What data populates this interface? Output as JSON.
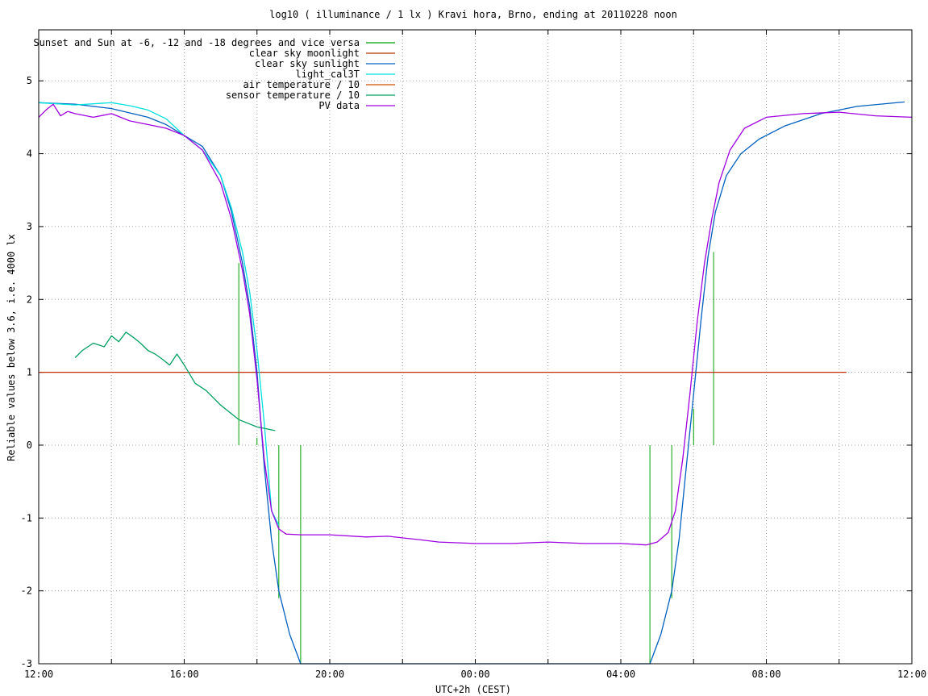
{
  "chart_data": {
    "type": "line",
    "title": "log10 ( illuminance / 1 lx ) Kravi hora, Brno, ending at 20110228 noon",
    "xlabel": "UTC+2h (CEST)",
    "ylabel": "Reliable values below 3.6, i.e. 4000 lx",
    "xlim": [
      0,
      24
    ],
    "ylim": [
      -3,
      5.7
    ],
    "x_unit": "hours since 12:00",
    "grid": true,
    "legend_position": "top-left",
    "xticks": [
      {
        "v": 0,
        "label": "12:00"
      },
      {
        "v": 2,
        "label": ""
      },
      {
        "v": 4,
        "label": "16:00"
      },
      {
        "v": 6,
        "label": ""
      },
      {
        "v": 8,
        "label": "20:00"
      },
      {
        "v": 10,
        "label": ""
      },
      {
        "v": 12,
        "label": "00:00"
      },
      {
        "v": 14,
        "label": ""
      },
      {
        "v": 16,
        "label": "04:00"
      },
      {
        "v": 18,
        "label": ""
      },
      {
        "v": 20,
        "label": "08:00"
      },
      {
        "v": 22,
        "label": ""
      },
      {
        "v": 24,
        "label": "12:00"
      }
    ],
    "yticks": [
      {
        "v": -3,
        "label": "-3"
      },
      {
        "v": -2,
        "label": "-2"
      },
      {
        "v": -1,
        "label": "-1"
      },
      {
        "v": 0,
        "label": "0"
      },
      {
        "v": 1,
        "label": "1"
      },
      {
        "v": 2,
        "label": "2"
      },
      {
        "v": 3,
        "label": "3"
      },
      {
        "v": 4,
        "label": "4"
      },
      {
        "v": 5,
        "label": "5"
      }
    ],
    "series": [
      {
        "name": "Sunset and Sun at -6, -12 and -18 degrees and vice versa",
        "color": "#00a000",
        "style": "impulses",
        "points": [
          [
            5.5,
            2.5
          ],
          [
            6.0,
            0.1
          ],
          [
            6.6,
            -2.1
          ],
          [
            7.2,
            -3.0
          ],
          [
            16.8,
            -3.0
          ],
          [
            17.4,
            -2.1
          ],
          [
            18.0,
            0.5
          ],
          [
            18.55,
            2.65
          ]
        ]
      },
      {
        "name": "clear sky moonlight",
        "color": "#c03000",
        "points": [
          [
            0,
            1.0
          ],
          [
            22.2,
            1.0
          ]
        ]
      },
      {
        "name": "clear sky sunlight",
        "color": "#0060c0",
        "points": [
          [
            0,
            4.7
          ],
          [
            1.0,
            4.68
          ],
          [
            2.0,
            4.62
          ],
          [
            3.0,
            4.5
          ],
          [
            3.5,
            4.4
          ],
          [
            4.0,
            4.25
          ],
          [
            4.5,
            4.1
          ],
          [
            5.0,
            3.7
          ],
          [
            5.3,
            3.2
          ],
          [
            5.6,
            2.5
          ],
          [
            5.8,
            1.9
          ],
          [
            6.0,
            1.0
          ],
          [
            6.2,
            -0.3
          ],
          [
            6.4,
            -1.3
          ],
          [
            6.6,
            -2.0
          ],
          [
            6.9,
            -2.6
          ],
          [
            7.2,
            -3.0
          ],
          [
            16.8,
            -3.0
          ],
          [
            17.1,
            -2.6
          ],
          [
            17.4,
            -2.0
          ],
          [
            17.6,
            -1.3
          ],
          [
            17.8,
            -0.3
          ],
          [
            18.0,
            0.7
          ],
          [
            18.2,
            1.7
          ],
          [
            18.4,
            2.6
          ],
          [
            18.6,
            3.2
          ],
          [
            18.9,
            3.7
          ],
          [
            19.3,
            4.0
          ],
          [
            19.8,
            4.2
          ],
          [
            20.5,
            4.38
          ],
          [
            21.5,
            4.55
          ],
          [
            22.5,
            4.65
          ],
          [
            23.8,
            4.71
          ]
        ]
      },
      {
        "name": "light_cal3T",
        "color": "#00e0e0",
        "points": [
          [
            0,
            4.7
          ],
          [
            1.0,
            4.67
          ],
          [
            2.0,
            4.7
          ],
          [
            2.5,
            4.66
          ],
          [
            3.0,
            4.6
          ],
          [
            3.5,
            4.48
          ],
          [
            4.0,
            4.25
          ],
          [
            4.5,
            4.05
          ],
          [
            5.0,
            3.7
          ],
          [
            5.3,
            3.25
          ],
          [
            5.6,
            2.65
          ],
          [
            5.8,
            2.1
          ],
          [
            6.0,
            1.3
          ],
          [
            6.2,
            0.3
          ],
          [
            6.4,
            -0.9
          ],
          [
            6.6,
            -1.1
          ]
        ]
      },
      {
        "name": "air temperature / 10",
        "color": "#d05000",
        "points": []
      },
      {
        "name": "sensor temperature / 10",
        "color": "#00a060",
        "points": [
          [
            1.0,
            1.2
          ],
          [
            1.2,
            1.3
          ],
          [
            1.5,
            1.4
          ],
          [
            1.8,
            1.35
          ],
          [
            2.0,
            1.5
          ],
          [
            2.2,
            1.42
          ],
          [
            2.4,
            1.55
          ],
          [
            2.6,
            1.48
          ],
          [
            2.8,
            1.4
          ],
          [
            3.0,
            1.3
          ],
          [
            3.2,
            1.25
          ],
          [
            3.4,
            1.18
          ],
          [
            3.6,
            1.1
          ],
          [
            3.8,
            1.25
          ],
          [
            4.0,
            1.1
          ],
          [
            4.3,
            0.85
          ],
          [
            4.6,
            0.75
          ],
          [
            5.0,
            0.55
          ],
          [
            5.5,
            0.35
          ],
          [
            6.0,
            0.25
          ],
          [
            6.5,
            0.2
          ]
        ]
      },
      {
        "name": "PV data",
        "color": "#a000e0",
        "points": [
          [
            0,
            4.5
          ],
          [
            0.2,
            4.6
          ],
          [
            0.4,
            4.68
          ],
          [
            0.6,
            4.52
          ],
          [
            0.8,
            4.58
          ],
          [
            1.0,
            4.55
          ],
          [
            1.5,
            4.5
          ],
          [
            2.0,
            4.55
          ],
          [
            2.5,
            4.45
          ],
          [
            3.0,
            4.4
          ],
          [
            3.5,
            4.35
          ],
          [
            4.0,
            4.25
          ],
          [
            4.5,
            4.05
          ],
          [
            5.0,
            3.6
          ],
          [
            5.3,
            3.1
          ],
          [
            5.6,
            2.4
          ],
          [
            5.8,
            1.8
          ],
          [
            6.0,
            0.9
          ],
          [
            6.2,
            -0.2
          ],
          [
            6.4,
            -0.9
          ],
          [
            6.6,
            -1.15
          ],
          [
            6.8,
            -1.22
          ],
          [
            7.2,
            -1.23
          ],
          [
            8.0,
            -1.23
          ],
          [
            9.0,
            -1.26
          ],
          [
            9.6,
            -1.25
          ],
          [
            10.5,
            -1.3
          ],
          [
            11.0,
            -1.33
          ],
          [
            12.0,
            -1.35
          ],
          [
            13.0,
            -1.35
          ],
          [
            14.0,
            -1.33
          ],
          [
            15.0,
            -1.35
          ],
          [
            16.0,
            -1.35
          ],
          [
            16.7,
            -1.37
          ],
          [
            17.0,
            -1.33
          ],
          [
            17.3,
            -1.2
          ],
          [
            17.5,
            -0.9
          ],
          [
            17.7,
            -0.2
          ],
          [
            17.9,
            0.7
          ],
          [
            18.1,
            1.7
          ],
          [
            18.3,
            2.5
          ],
          [
            18.5,
            3.1
          ],
          [
            18.7,
            3.6
          ],
          [
            19.0,
            4.05
          ],
          [
            19.4,
            4.35
          ],
          [
            20.0,
            4.5
          ],
          [
            21.0,
            4.55
          ],
          [
            22.0,
            4.57
          ],
          [
            23.0,
            4.52
          ],
          [
            24.0,
            4.5
          ]
        ]
      }
    ]
  }
}
